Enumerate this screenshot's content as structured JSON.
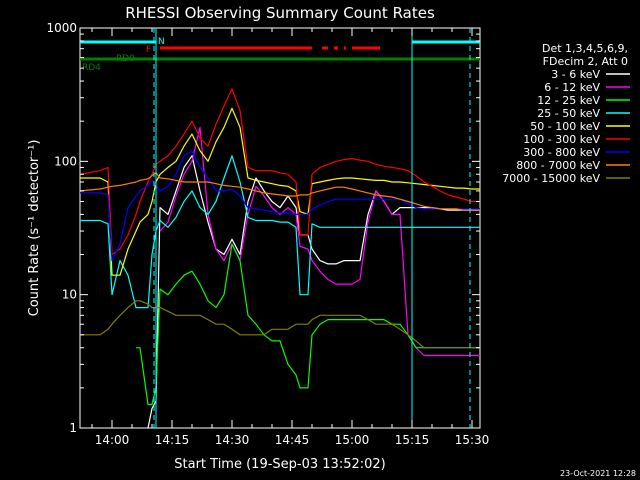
{
  "chart_data": {
    "type": "line",
    "title": "RHESSI Observing Summary Count Rates",
    "xlabel": "Start Time (19-Sep-03 13:52:02)",
    "ylabel": "Count Rate (s⁻¹ detector⁻¹)",
    "yscale": "log",
    "ylim": [
      1,
      1000
    ],
    "xlim_minutes": [
      0,
      100
    ],
    "y_ticks": [
      "1",
      "10",
      "100",
      "1000"
    ],
    "x_ticks": [
      "14:00",
      "14:15",
      "14:30",
      "14:45",
      "15:00",
      "15:15",
      "15:30"
    ],
    "x_tick_minutes": [
      8,
      23,
      38,
      53,
      68,
      83,
      98
    ],
    "legend_header": [
      "Det 1,3,4,5,6,9,",
      "FDecim 2, Att 0"
    ],
    "timestamp": "23-Oct-2021 12:28",
    "flag_labels": {
      "N": "N",
      "F": "F",
      "RD0": "RD0",
      "RD4": "RD4"
    },
    "flags": {
      "N": [
        [
          0,
          19
        ],
        [
          83,
          100
        ]
      ],
      "F": [
        [
          20,
          58
        ],
        [
          60.5,
          62
        ],
        [
          63.5,
          64.5
        ],
        [
          66,
          66.5
        ],
        [
          68,
          75
        ]
      ],
      "RD0": [
        [
          19,
          55
        ],
        [
          58,
          100
        ]
      ],
      "RD4": [
        [
          0,
          19
        ],
        [
          54,
          58
        ]
      ]
    },
    "event_lines_min": [
      19,
      83
    ],
    "dashed_lines_min": [
      18.5,
      97.5
    ],
    "x": [
      0,
      5,
      7,
      8,
      10,
      12,
      14,
      15,
      17,
      18,
      19,
      20,
      22,
      24,
      26,
      28,
      30,
      32,
      34,
      36,
      38,
      40,
      42,
      44,
      46,
      48,
      50,
      52,
      54,
      55,
      57,
      58,
      60,
      62,
      64,
      66,
      68,
      70,
      72,
      74,
      76,
      78,
      80,
      82,
      84,
      86,
      88,
      90,
      92,
      94,
      96,
      98,
      100
    ],
    "series": [
      {
        "name": "3 - 6 keV",
        "color": "#ffffff",
        "values": [
          null,
          null,
          null,
          null,
          null,
          null,
          null,
          null,
          1.0,
          1.4,
          1.6,
          45,
          40,
          60,
          90,
          110,
          60,
          35,
          22,
          20,
          26,
          20,
          50,
          75,
          60,
          50,
          45,
          55,
          45,
          28,
          28,
          22,
          18,
          17,
          17,
          18,
          18,
          18,
          40,
          60,
          50,
          40,
          45,
          45,
          45,
          45,
          45,
          44,
          43,
          43,
          43,
          43,
          43
        ]
      },
      {
        "name": "6 - 12 keV",
        "color": "#ff00ff",
        "values": [
          null,
          null,
          null,
          null,
          null,
          null,
          null,
          null,
          null,
          null,
          null,
          30,
          35,
          55,
          80,
          100,
          180,
          40,
          22,
          18,
          24,
          18,
          40,
          65,
          55,
          45,
          40,
          45,
          40,
          23,
          22,
          18,
          15,
          13,
          12,
          12,
          12,
          13,
          35,
          60,
          50,
          40,
          40,
          5,
          4,
          3.5,
          3.5,
          3.5,
          3.5,
          3.5,
          3.5,
          3.5,
          3.5
        ]
      },
      {
        "name": "12 - 25 keV",
        "color": "#00ff00",
        "values": [
          null,
          null,
          null,
          null,
          null,
          null,
          4,
          4,
          1.5,
          1.5,
          2,
          11,
          10,
          12,
          14,
          15,
          12,
          9,
          8,
          10,
          24,
          18,
          7,
          6,
          5,
          4.5,
          4.5,
          3,
          2.5,
          2,
          2,
          5,
          6,
          6.5,
          6.5,
          6.5,
          6.5,
          6.5,
          6.5,
          6.5,
          6.5,
          6,
          6,
          5,
          4,
          4,
          4,
          4,
          4,
          4,
          4,
          4,
          4
        ]
      },
      {
        "name": "25 - 50 keV",
        "color": "#00ffff",
        "values": [
          36,
          36,
          34,
          10,
          18,
          14,
          8,
          8,
          8,
          20,
          30,
          36,
          32,
          38,
          50,
          60,
          45,
          40,
          50,
          75,
          110,
          70,
          38,
          36,
          36,
          36,
          35,
          35,
          32,
          10,
          10,
          34,
          32,
          32,
          32,
          32,
          32,
          32,
          32,
          32,
          32,
          32,
          32,
          32,
          32,
          32,
          32,
          32,
          32,
          32,
          32,
          32,
          32
        ]
      },
      {
        "name": "50 - 100 keV",
        "color": "#ffff00",
        "values": [
          75,
          75,
          70,
          14,
          14,
          22,
          30,
          35,
          40,
          50,
          70,
          80,
          90,
          100,
          130,
          160,
          120,
          100,
          140,
          180,
          250,
          180,
          75,
          72,
          70,
          68,
          66,
          65,
          60,
          42,
          40,
          68,
          70,
          72,
          74,
          75,
          75,
          74,
          73,
          72,
          72,
          70,
          70,
          69,
          68,
          67,
          66,
          65,
          64,
          63,
          63,
          62,
          62
        ]
      },
      {
        "name": "100 - 300 keV",
        "color": "#ff0000",
        "values": [
          80,
          85,
          90,
          20,
          22,
          28,
          40,
          50,
          70,
          80,
          95,
          100,
          110,
          130,
          160,
          200,
          150,
          130,
          190,
          260,
          350,
          240,
          90,
          85,
          85,
          85,
          82,
          80,
          70,
          28,
          28,
          80,
          90,
          95,
          100,
          103,
          105,
          102,
          100,
          95,
          92,
          90,
          88,
          85,
          78,
          70,
          65,
          60,
          56,
          54,
          52,
          50,
          50
        ]
      },
      {
        "name": "300 - 800 keV",
        "color": "#0000ff",
        "values": [
          58,
          58,
          56,
          18,
          24,
          45,
          55,
          60,
          66,
          72,
          66,
          60,
          65,
          80,
          110,
          120,
          90,
          75,
          60,
          60,
          62,
          55,
          45,
          44,
          43,
          42,
          41,
          41,
          40,
          40,
          40,
          44,
          47,
          50,
          52,
          52,
          52,
          52,
          52,
          52,
          52,
          52,
          52,
          48,
          45,
          44,
          44,
          44,
          44,
          44,
          44,
          44,
          44
        ]
      },
      {
        "name": "800 - 7000 keV",
        "color": "#ff8000",
        "values": [
          60,
          62,
          64,
          65,
          66,
          68,
          70,
          72,
          74,
          78,
          82,
          75,
          74,
          72,
          70,
          70,
          70,
          70,
          68,
          66,
          65,
          64,
          62,
          60,
          58,
          57,
          56,
          55,
          55,
          56,
          56,
          58,
          60,
          62,
          64,
          64,
          62,
          60,
          58,
          56,
          55,
          54,
          52,
          50,
          48,
          46,
          45,
          44,
          44,
          44,
          43,
          43,
          43
        ]
      },
      {
        "name": "7000 - 15000 keV",
        "color": "#808000",
        "values": [
          5,
          5,
          5.5,
          6,
          7,
          8,
          9,
          9,
          8.5,
          8,
          8,
          8,
          7.5,
          7,
          7,
          7,
          7,
          6.5,
          6,
          6,
          5.5,
          5,
          5,
          5,
          5,
          5.5,
          5.5,
          5.5,
          6,
          6,
          6,
          6.5,
          7,
          7,
          7,
          7,
          7,
          7,
          6.5,
          6,
          6,
          6,
          5.5,
          5,
          4.5,
          4,
          4,
          4,
          4,
          4,
          4,
          4,
          4
        ]
      }
    ]
  }
}
